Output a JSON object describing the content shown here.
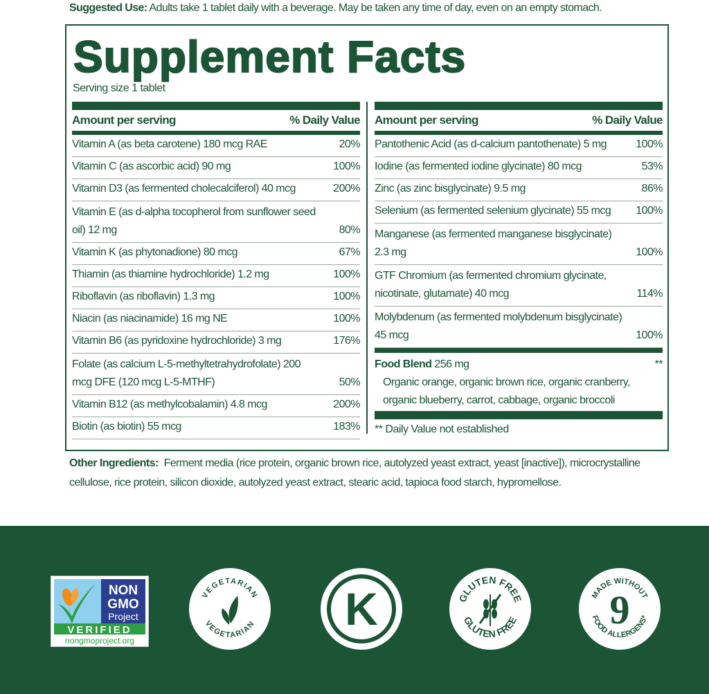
{
  "suggested_use": {
    "label": "Suggested Use:",
    "text": "Adults take 1 tablet daily with a beverage. May be taken any time of day, even on an empty stomach."
  },
  "title": "Supplement Facts",
  "serving_size": "Serving size 1 tablet",
  "header": {
    "amount": "Amount per serving",
    "dv": "% Daily Value"
  },
  "left_rows": [
    {
      "name": "Vitamin A (as beta carotene) 180 mcg RAE",
      "dv": "20%"
    },
    {
      "name": "Vitamin C (as ascorbic acid) 90 mg",
      "dv": "100%"
    },
    {
      "name": "Vitamin D3 (as fermented cholecalciferol) 40 mcg",
      "dv": "200%"
    },
    {
      "name": "Vitamin E (as d-alpha tocopherol from sunflower seed oil) 12 mg",
      "dv": "80%"
    },
    {
      "name": "Vitamin K (as phytonadione) 80 mcg",
      "dv": "67%"
    },
    {
      "name": "Thiamin (as thiamine hydrochloride) 1.2 mg",
      "dv": "100%"
    },
    {
      "name": "Riboflavin (as riboflavin) 1.3 mg",
      "dv": "100%"
    },
    {
      "name": "Niacin (as niacinamide) 16 mg NE",
      "dv": "100%"
    },
    {
      "name": "Vitamin B6 (as pyridoxine hydrochloride) 3 mg",
      "dv": "176%"
    },
    {
      "name": "Folate (as calcium L-5-methyltetrahydrofolate) 200 mcg DFE (120 mcg L-5-MTHF)",
      "dv": "50%"
    },
    {
      "name": "Vitamin B12 (as methylcobalamin) 4.8 mcg",
      "dv": "200%"
    },
    {
      "name": "Biotin (as biotin) 55 mcg",
      "dv": "183%"
    }
  ],
  "right_rows": [
    {
      "name": "Pantothenic Acid (as d-calcium pantothenate) 5 mg",
      "dv": "100%"
    },
    {
      "name": "Iodine (as fermented iodine glycinate) 80 mcg",
      "dv": "53%"
    },
    {
      "name": "Zinc (as zinc bisglycinate) 9.5 mg",
      "dv": "86%"
    },
    {
      "name": "Selenium (as fermented selenium glycinate) 55 mcg",
      "dv": "100%"
    },
    {
      "name": "Manganese (as fermented manganese bisglycinate) 2.3 mg",
      "dv": "100%"
    },
    {
      "name": "GTF Chromium (as fermented chromium glycinate, nicotinate, glutamate) 40 mcg",
      "dv": "114%"
    },
    {
      "name": "Molybdenum (as fermented molybdenum bisglycinate) 45 mcg",
      "dv": "100%"
    }
  ],
  "food_blend": {
    "label": "Food Blend",
    "amount": "256 mg",
    "dv": "**",
    "desc": "Organic orange, organic brown rice, organic cranberry, organic blueberry, carrot, cabbage, organic broccoli"
  },
  "footnote": "** Daily Value not established",
  "other_ingredients": {
    "label": "Other Ingredients:",
    "text": "Ferment media (rice protein, organic brown rice, autolyzed yeast extract, yeast [inactive]), microcrystalline cellulose, rice protein, silicon dioxide, autolyzed yeast extract, stearic acid, tapioca food starch, hypromellose."
  },
  "badges": {
    "nongmo": {
      "line1": "NON",
      "line2": "GMO",
      "line3": "Project",
      "verified": "VERIFIED",
      "url": "nongmoproject.org"
    },
    "vegetarian": "VEGETARIAN",
    "kosher": "K",
    "gluten_free": "GLUTEN FREE",
    "allergens": {
      "top": "MADE WITHOUT",
      "num": "9",
      "bottom": "FOOD ALLERGENS*"
    }
  },
  "colors": {
    "brand_green": "#1c5436"
  }
}
